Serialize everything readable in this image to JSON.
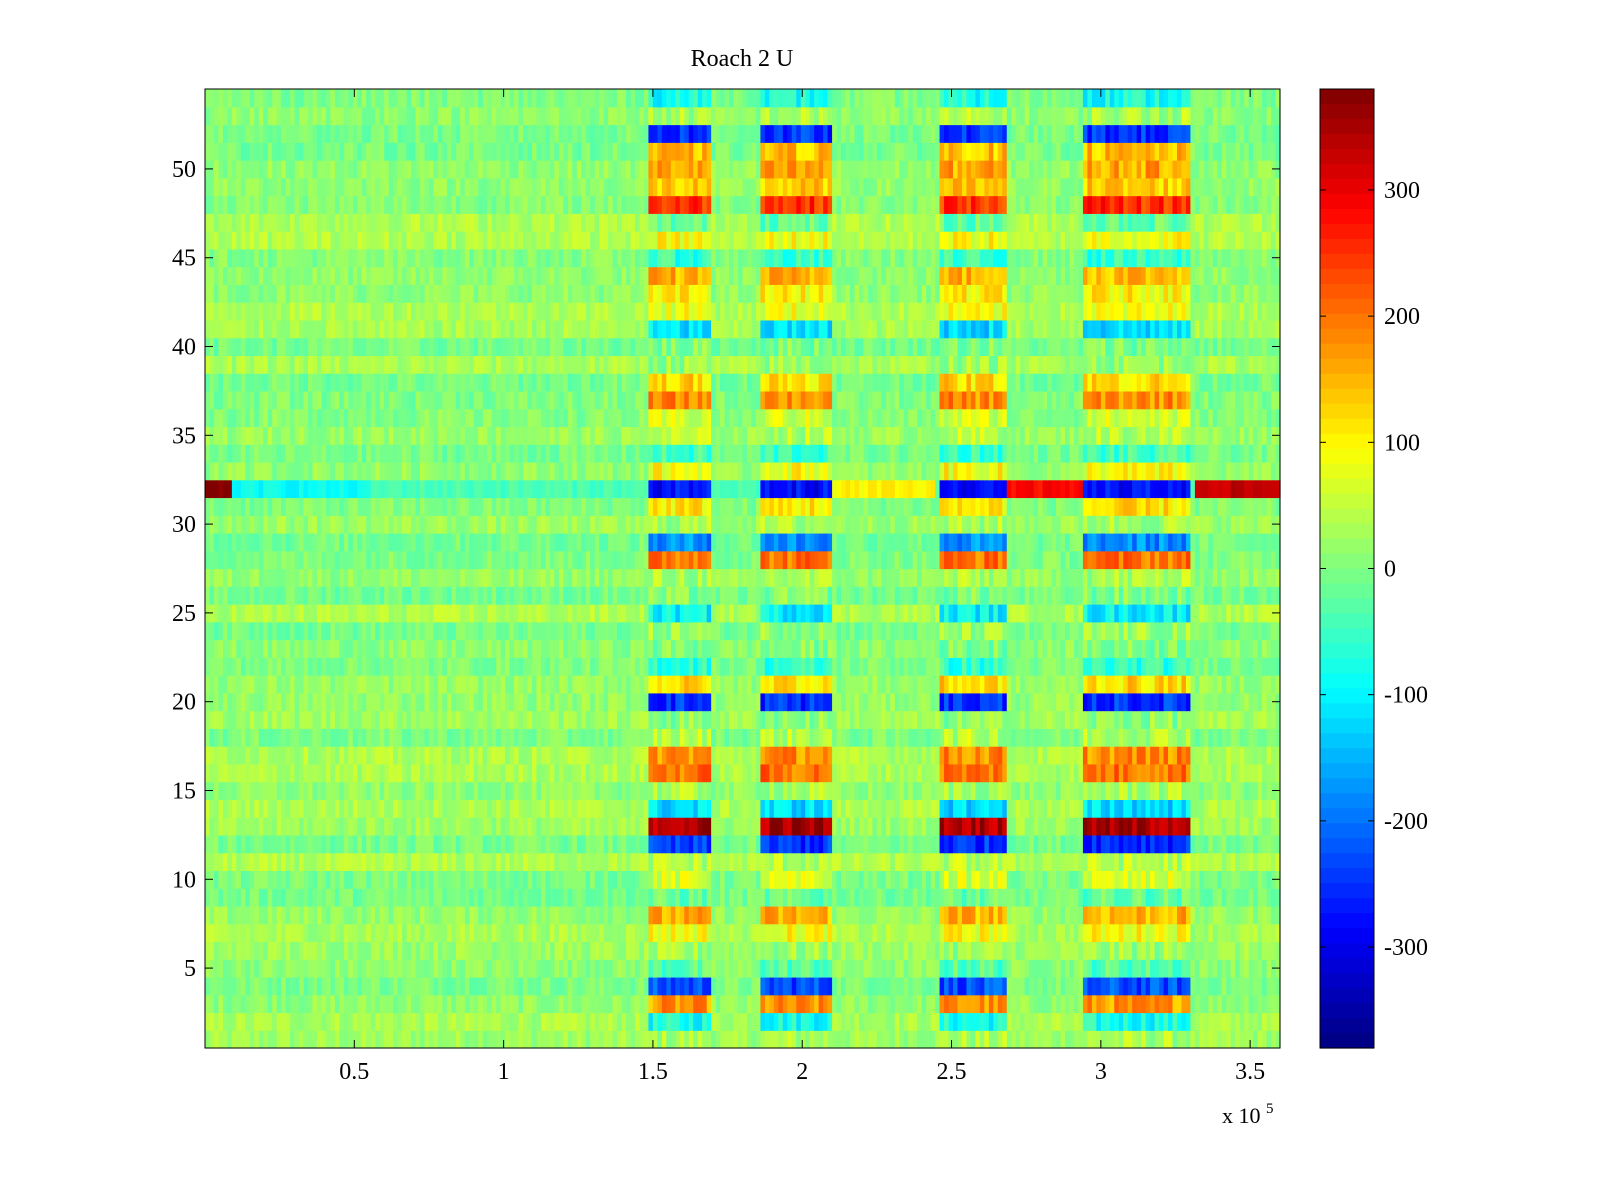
{
  "chart_data": {
    "type": "heatmap",
    "title": "Roach 2 U",
    "x_range": [
      0,
      360000
    ],
    "y_range": [
      0.5,
      54.5
    ],
    "x_ticks": [
      50000,
      100000,
      150000,
      200000,
      250000,
      300000,
      350000
    ],
    "x_tick_labels": [
      "0.5",
      "1",
      "1.5",
      "2",
      "2.5",
      "3",
      "3.5"
    ],
    "x_multiplier_base": "x 10",
    "x_multiplier_exp": "5",
    "y_ticks": [
      5,
      10,
      15,
      20,
      25,
      30,
      35,
      40,
      45,
      50
    ],
    "y_tick_labels": [
      "5",
      "10",
      "15",
      "20",
      "25",
      "30",
      "35",
      "40",
      "45",
      "50"
    ],
    "colorbar": {
      "colormap": "jet",
      "range": [
        -380,
        380
      ],
      "ticks": [
        300,
        200,
        100,
        0,
        -100,
        -200,
        -300
      ],
      "tick_labels": [
        "300",
        "200",
        "100",
        "0",
        "-100",
        "-200",
        "-300"
      ]
    },
    "active_segments_x": [
      [
        148000,
        170000
      ],
      [
        186000,
        210000
      ],
      [
        246000,
        268000
      ],
      [
        294000,
        330000
      ]
    ],
    "row_baselines": [
      {
        "row": 1,
        "value": 30
      },
      {
        "row": 2,
        "value": -80
      },
      {
        "row": 3,
        "value": 170
      },
      {
        "row": 4,
        "value": -230
      },
      {
        "row": 5,
        "value": -30
      },
      {
        "row": 6,
        "value": 20
      },
      {
        "row": 7,
        "value": 90
      },
      {
        "row": 8,
        "value": 150
      },
      {
        "row": 9,
        "value": -20
      },
      {
        "row": 10,
        "value": 60
      },
      {
        "row": 11,
        "value": 40
      },
      {
        "row": 12,
        "value": -250
      },
      {
        "row": 13,
        "value": 350
      },
      {
        "row": 14,
        "value": -120
      },
      {
        "row": 15,
        "value": 30
      },
      {
        "row": 16,
        "value": 200
      },
      {
        "row": 17,
        "value": 180
      },
      {
        "row": 18,
        "value": 40
      },
      {
        "row": 19,
        "value": 10
      },
      {
        "row": 20,
        "value": -250
      },
      {
        "row": 21,
        "value": 120
      },
      {
        "row": 22,
        "value": -60
      },
      {
        "row": 23,
        "value": 0
      },
      {
        "row": 24,
        "value": 20
      },
      {
        "row": 25,
        "value": -100
      },
      {
        "row": 26,
        "value": 0
      },
      {
        "row": 27,
        "value": 30
      },
      {
        "row": 28,
        "value": 200
      },
      {
        "row": 29,
        "value": -180
      },
      {
        "row": 30,
        "value": 30
      },
      {
        "row": 31,
        "value": 110
      },
      {
        "row": 32,
        "value": -260
      },
      {
        "row": 33,
        "value": 90
      },
      {
        "row": 34,
        "value": -50
      },
      {
        "row": 35,
        "value": 40
      },
      {
        "row": 36,
        "value": 60
      },
      {
        "row": 37,
        "value": 180
      },
      {
        "row": 38,
        "value": 120
      },
      {
        "row": 39,
        "value": 20
      },
      {
        "row": 40,
        "value": 0
      },
      {
        "row": 41,
        "value": -120
      },
      {
        "row": 42,
        "value": 80
      },
      {
        "row": 43,
        "value": 100
      },
      {
        "row": 44,
        "value": 150
      },
      {
        "row": 45,
        "value": -60
      },
      {
        "row": 46,
        "value": 90
      },
      {
        "row": 47,
        "value": -20
      },
      {
        "row": 48,
        "value": 250
      },
      {
        "row": 49,
        "value": 130
      },
      {
        "row": 50,
        "value": 160
      },
      {
        "row": 51,
        "value": 140
      },
      {
        "row": 52,
        "value": -250
      },
      {
        "row": 53,
        "value": 30
      },
      {
        "row": 54,
        "value": -80
      }
    ],
    "row32_segments": [
      {
        "x": [
          0,
          9000
        ],
        "value": 380
      },
      {
        "x": [
          9000,
          55000
        ],
        "value": -90
      },
      {
        "x": [
          210000,
          245000
        ],
        "value": 100
      },
      {
        "x": [
          268000,
          294000
        ],
        "value": 280
      },
      {
        "x": [
          332000,
          360000
        ],
        "value": 330
      }
    ]
  }
}
